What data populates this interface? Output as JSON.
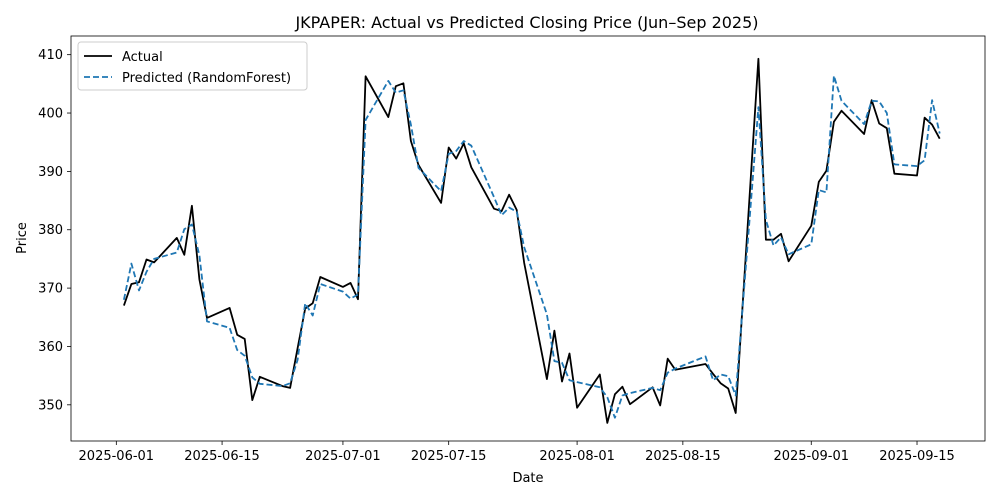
{
  "chart_data": {
    "type": "line",
    "title": "JKPAPER: Actual vs Predicted Closing Price (Jun–Sep 2025)",
    "xlabel": "Date",
    "ylabel": "Price",
    "xlim": [
      "2025-05-26",
      "2025-09-24"
    ],
    "ylim": [
      343.8,
      413.2
    ],
    "x_ticks": [
      "2025-06-01",
      "2025-06-15",
      "2025-07-01",
      "2025-07-15",
      "2025-08-01",
      "2025-08-15",
      "2025-09-01",
      "2025-09-15"
    ],
    "y_ticks": [
      350,
      360,
      370,
      380,
      390,
      400,
      410
    ],
    "legend_position": "top-left",
    "grid": false,
    "series": [
      {
        "name": "Actual",
        "color": "#000000",
        "style": "solid",
        "points": [
          [
            "2025-06-02",
            367.0
          ],
          [
            "2025-06-03",
            370.7
          ],
          [
            "2025-06-04",
            371.0
          ],
          [
            "2025-06-05",
            374.9
          ],
          [
            "2025-06-06",
            374.4
          ],
          [
            "2025-06-09",
            378.6
          ],
          [
            "2025-06-10",
            375.7
          ],
          [
            "2025-06-11",
            384.1
          ],
          [
            "2025-06-12",
            371.5
          ],
          [
            "2025-06-13",
            364.9
          ],
          [
            "2025-06-16",
            366.6
          ],
          [
            "2025-06-17",
            362.0
          ],
          [
            "2025-06-18",
            361.3
          ],
          [
            "2025-06-19",
            350.8
          ],
          [
            "2025-06-20",
            354.8
          ],
          [
            "2025-06-23",
            353.2
          ],
          [
            "2025-06-24",
            352.9
          ],
          [
            "2025-06-25",
            359.7
          ],
          [
            "2025-06-26",
            366.5
          ],
          [
            "2025-06-27",
            367.4
          ],
          [
            "2025-06-28",
            371.9
          ],
          [
            "2025-07-01",
            370.2
          ],
          [
            "2025-07-02",
            370.9
          ],
          [
            "2025-07-03",
            368.1
          ],
          [
            "2025-07-04",
            406.3
          ],
          [
            "2025-07-07",
            399.3
          ],
          [
            "2025-07-08",
            404.6
          ],
          [
            "2025-07-09",
            405.1
          ],
          [
            "2025-07-10",
            395.2
          ],
          [
            "2025-07-11",
            391.1
          ],
          [
            "2025-07-14",
            384.6
          ],
          [
            "2025-07-15",
            394.1
          ],
          [
            "2025-07-16",
            392.2
          ],
          [
            "2025-07-17",
            394.8
          ],
          [
            "2025-07-18",
            390.7
          ],
          [
            "2025-07-21",
            383.6
          ],
          [
            "2025-07-22",
            383.2
          ],
          [
            "2025-07-23",
            386.0
          ],
          [
            "2025-07-24",
            383.4
          ],
          [
            "2025-07-25",
            374.3
          ],
          [
            "2025-07-28",
            354.4
          ],
          [
            "2025-07-29",
            362.7
          ],
          [
            "2025-07-30",
            354.0
          ],
          [
            "2025-07-31",
            358.8
          ],
          [
            "2025-08-01",
            349.5
          ],
          [
            "2025-08-04",
            355.2
          ],
          [
            "2025-08-05",
            346.9
          ],
          [
            "2025-08-06",
            351.8
          ],
          [
            "2025-08-07",
            353.1
          ],
          [
            "2025-08-08",
            350.1
          ],
          [
            "2025-08-11",
            353.0
          ],
          [
            "2025-08-12",
            349.9
          ],
          [
            "2025-08-13",
            357.9
          ],
          [
            "2025-08-14",
            356.0
          ],
          [
            "2025-08-18",
            357.0
          ],
          [
            "2025-08-19",
            355.3
          ],
          [
            "2025-08-20",
            353.7
          ],
          [
            "2025-08-21",
            352.8
          ],
          [
            "2025-08-22",
            348.6
          ],
          [
            "2025-08-25",
            409.3
          ],
          [
            "2025-08-26",
            378.3
          ],
          [
            "2025-08-27",
            378.3
          ],
          [
            "2025-08-28",
            379.3
          ],
          [
            "2025-08-29",
            374.6
          ],
          [
            "2025-09-01",
            380.7
          ],
          [
            "2025-09-02",
            388.2
          ],
          [
            "2025-09-03",
            390.1
          ],
          [
            "2025-09-04",
            398.5
          ],
          [
            "2025-09-05",
            400.4
          ],
          [
            "2025-09-08",
            396.4
          ],
          [
            "2025-09-09",
            402.2
          ],
          [
            "2025-09-10",
            398.2
          ],
          [
            "2025-09-11",
            397.4
          ],
          [
            "2025-09-12",
            389.6
          ],
          [
            "2025-09-15",
            389.3
          ],
          [
            "2025-09-16",
            399.2
          ],
          [
            "2025-09-17",
            398.0
          ],
          [
            "2025-09-18",
            395.6
          ]
        ]
      },
      {
        "name": "Predicted (RandomForest)",
        "color": "#1f77b4",
        "style": "dashed",
        "points": [
          [
            "2025-06-02",
            368.0
          ],
          [
            "2025-06-03",
            374.2
          ],
          [
            "2025-06-04",
            369.6
          ],
          [
            "2025-06-05",
            372.8
          ],
          [
            "2025-06-06",
            375.0
          ],
          [
            "2025-06-09",
            376.1
          ],
          [
            "2025-06-10",
            380.1
          ],
          [
            "2025-06-11",
            380.9
          ],
          [
            "2025-06-12",
            375.6
          ],
          [
            "2025-06-13",
            364.3
          ],
          [
            "2025-06-16",
            363.2
          ],
          [
            "2025-06-17",
            359.4
          ],
          [
            "2025-06-18",
            358.4
          ],
          [
            "2025-06-19",
            354.7
          ],
          [
            "2025-06-20",
            353.6
          ],
          [
            "2025-06-23",
            353.2
          ],
          [
            "2025-06-24",
            353.7
          ],
          [
            "2025-06-25",
            357.7
          ],
          [
            "2025-06-26",
            367.4
          ],
          [
            "2025-06-27",
            365.3
          ],
          [
            "2025-06-28",
            370.7
          ],
          [
            "2025-07-01",
            369.4
          ],
          [
            "2025-07-02",
            368.2
          ],
          [
            "2025-07-03",
            368.9
          ],
          [
            "2025-07-04",
            398.8
          ],
          [
            "2025-07-07",
            405.5
          ],
          [
            "2025-07-08",
            403.5
          ],
          [
            "2025-07-09",
            403.9
          ],
          [
            "2025-07-10",
            398.0
          ],
          [
            "2025-07-11",
            390.6
          ],
          [
            "2025-07-14",
            386.6
          ],
          [
            "2025-07-15",
            393.0
          ],
          [
            "2025-07-16",
            393.5
          ],
          [
            "2025-07-17",
            395.2
          ],
          [
            "2025-07-18",
            394.4
          ],
          [
            "2025-07-21",
            385.6
          ],
          [
            "2025-07-22",
            382.5
          ],
          [
            "2025-07-23",
            383.8
          ],
          [
            "2025-07-24",
            383.1
          ],
          [
            "2025-07-25",
            377.0
          ],
          [
            "2025-07-28",
            365.5
          ],
          [
            "2025-07-29",
            357.5
          ],
          [
            "2025-07-30",
            357.2
          ],
          [
            "2025-07-31",
            354.2
          ],
          [
            "2025-08-01",
            353.9
          ],
          [
            "2025-08-04",
            353.0
          ],
          [
            "2025-08-05",
            351.3
          ],
          [
            "2025-08-06",
            347.8
          ],
          [
            "2025-08-07",
            351.6
          ],
          [
            "2025-08-08",
            352.0
          ],
          [
            "2025-08-11",
            352.9
          ],
          [
            "2025-08-12",
            352.5
          ],
          [
            "2025-08-13",
            355.5
          ],
          [
            "2025-08-14",
            356.2
          ],
          [
            "2025-08-18",
            358.3
          ],
          [
            "2025-08-19",
            354.2
          ],
          [
            "2025-08-20",
            355.2
          ],
          [
            "2025-08-21",
            354.9
          ],
          [
            "2025-08-22",
            351.6
          ],
          [
            "2025-08-25",
            401.0
          ],
          [
            "2025-08-26",
            381.7
          ],
          [
            "2025-08-27",
            377.3
          ],
          [
            "2025-08-28",
            378.7
          ],
          [
            "2025-08-29",
            375.8
          ],
          [
            "2025-09-01",
            377.5
          ],
          [
            "2025-09-02",
            386.8
          ],
          [
            "2025-09-03",
            386.4
          ],
          [
            "2025-09-04",
            406.4
          ],
          [
            "2025-09-05",
            402.1
          ],
          [
            "2025-09-08",
            398.1
          ],
          [
            "2025-09-09",
            402.1
          ],
          [
            "2025-09-10",
            402.0
          ],
          [
            "2025-09-11",
            400.0
          ],
          [
            "2025-09-12",
            391.2
          ],
          [
            "2025-09-15",
            390.9
          ],
          [
            "2025-09-16",
            391.9
          ],
          [
            "2025-09-17",
            402.2
          ],
          [
            "2025-09-18",
            396.5
          ]
        ]
      }
    ]
  }
}
